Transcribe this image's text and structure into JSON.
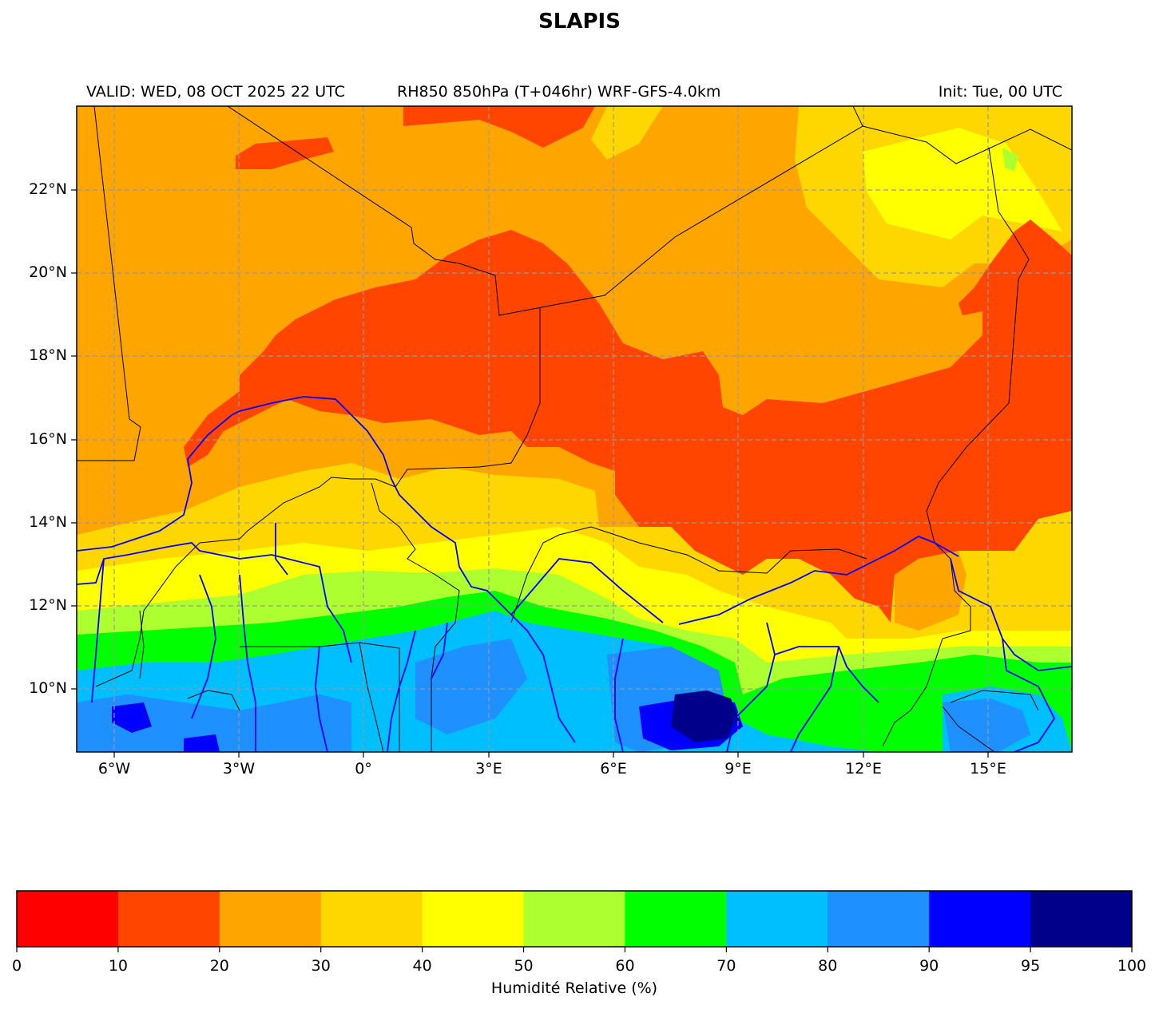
{
  "header": {
    "title": "SLAPIS",
    "valid": "VALID: WED, 08 OCT 2025 22 UTC",
    "field": "RH850 850hPa (T+046hr) WRF-GFS-4.0km",
    "init": "Init: Tue, 00 UTC"
  },
  "map": {
    "lon_range": [
      -7,
      17
    ],
    "lat_range": [
      8.5,
      24
    ],
    "lon_ticks": [
      "6°W",
      "3°W",
      "0°",
      "3°E",
      "6°E",
      "9°E",
      "12°E",
      "15°E"
    ],
    "lat_ticks": [
      "10°N",
      "12°N",
      "14°N",
      "16°N",
      "18°N",
      "20°N",
      "22°N"
    ],
    "gridlines": true,
    "grid_color": "#999999",
    "border_color": "#000000",
    "river_color": "#0000ff"
  },
  "colorbar": {
    "label": "Humidité Relative (%)",
    "ticks": [
      "0",
      "10",
      "20",
      "30",
      "40",
      "50",
      "60",
      "70",
      "80",
      "90",
      "95",
      "100"
    ],
    "bins": [
      {
        "from": 0,
        "to": 10,
        "color": "#ff0000"
      },
      {
        "from": 10,
        "to": 20,
        "color": "#ff4500"
      },
      {
        "from": 20,
        "to": 30,
        "color": "#ffa500"
      },
      {
        "from": 30,
        "to": 40,
        "color": "#ffd700"
      },
      {
        "from": 40,
        "to": 50,
        "color": "#ffff00"
      },
      {
        "from": 50,
        "to": 60,
        "color": "#adff2f"
      },
      {
        "from": 60,
        "to": 70,
        "color": "#00ff00"
      },
      {
        "from": 70,
        "to": 80,
        "color": "#00bfff"
      },
      {
        "from": 80,
        "to": 90,
        "color": "#1e90ff"
      },
      {
        "from": 90,
        "to": 95,
        "color": "#0000ff"
      },
      {
        "from": 95,
        "to": 100,
        "color": "#00008b"
      }
    ]
  }
}
